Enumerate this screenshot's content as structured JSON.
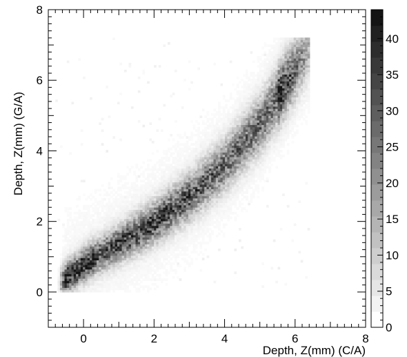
{
  "chart_data": {
    "type": "heatmap",
    "title": "",
    "xlabel": "Depth, Z(mm)  (C/A)",
    "ylabel": "Depth, Z(mm)  (G/A)",
    "xlim": [
      -1,
      8
    ],
    "ylim": [
      -1,
      8
    ],
    "x_ticks": [
      0,
      2,
      4,
      6,
      8
    ],
    "y_ticks": [
      0,
      2,
      4,
      6,
      8
    ],
    "grid": false,
    "colorscale": "grayscale",
    "colorbar": {
      "min": 0,
      "max": 44,
      "ticks": [
        0,
        5,
        10,
        15,
        20,
        25,
        30,
        35,
        40
      ]
    },
    "ridge": {
      "description_points": [
        [
          -0.35,
          0.5
        ],
        [
          0.2,
          0.9
        ],
        [
          1,
          1.35
        ],
        [
          2,
          1.95
        ],
        [
          3,
          2.7
        ],
        [
          4,
          3.6
        ],
        [
          5,
          4.75
        ],
        [
          5.6,
          5.7
        ]
      ],
      "peak_counts": 44
    }
  }
}
